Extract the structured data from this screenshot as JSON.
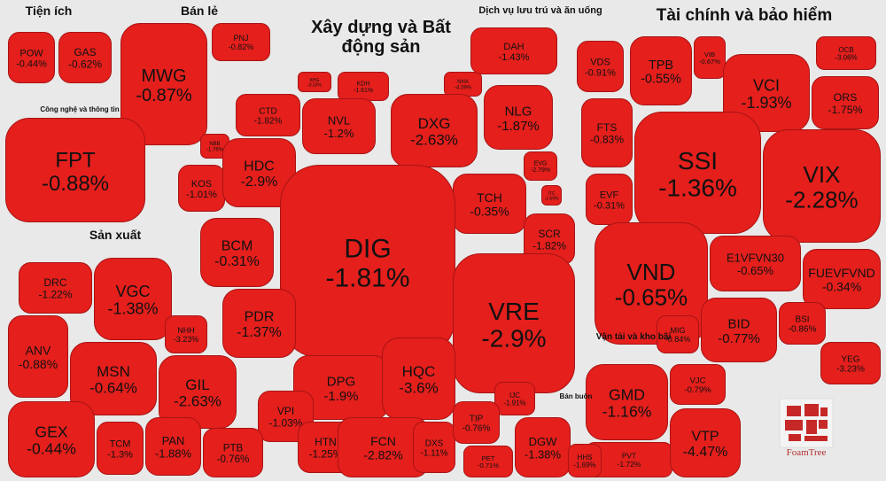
{
  "chart_data": {
    "type": "treemap",
    "color": "#e41f1c",
    "groups": [
      {
        "name": "Tiện ích",
        "categories": [
          "POW",
          "GAS"
        ],
        "values": [
          -0.44,
          -0.62
        ],
        "value_labels": [
          "-0.44%",
          "-0.62%"
        ]
      },
      {
        "name": "Bán lẻ",
        "categories": [
          "MWG",
          "PNJ"
        ],
        "values": [
          -0.87,
          -0.82
        ],
        "value_labels": [
          "-0.87%",
          "-0.82%"
        ]
      },
      {
        "name": "Công nghệ và thông tin",
        "categories": [
          "FPT"
        ],
        "values": [
          -0.88
        ],
        "value_labels": [
          "-0.88%"
        ]
      },
      {
        "name": "Xây dựng và Bất động sản",
        "categories": [
          "KHG",
          "KDH",
          "NHA",
          "CTD",
          "NVL",
          "DXG",
          "NLG",
          "NBB",
          "KOS",
          "HDC",
          "EVG",
          "ITC",
          "TCH",
          "SCR",
          "BCM",
          "DIG",
          "VRE",
          "PDR",
          "DPG",
          "HQC",
          "VPI",
          "HTN",
          "FCN",
          "DXS"
        ],
        "values": [
          -0.33,
          -1.61,
          -4.39,
          -1.82,
          -1.2,
          -2.63,
          -1.87,
          -1.76,
          -1.01,
          -2.9,
          -2.79,
          -1.69,
          -0.35,
          -1.82,
          -0.31,
          -1.81,
          -2.9,
          -1.37,
          -1.9,
          -3.6,
          -1.03,
          -1.25,
          -2.82,
          -1.11
        ],
        "value_labels": [
          "-0.33%",
          "-1.61%",
          "-4.39%",
          "-1.82%",
          "-1.2%",
          "-2.63%",
          "-1.87%",
          "-1.76%",
          "-1.01%",
          "-2.9%",
          "-2.79%",
          "-1.69%",
          "-0.35%",
          "-1.82%",
          "-0.31%",
          "-1.81%",
          "-2.9%",
          "-1.37%",
          "-1.9%",
          "-3.6%",
          "-1.03%",
          "-1.25%",
          "-2.82%",
          "-1.11%"
        ]
      },
      {
        "name": "Dịch vụ lưu trú và ăn uống",
        "categories": [
          "DAH"
        ],
        "values": [
          -1.43
        ],
        "value_labels": [
          "-1.43%"
        ]
      },
      {
        "name": "Tài chính và bảo hiểm",
        "categories": [
          "VDS",
          "TPB",
          "VIB",
          "OCB",
          "VCI",
          "ORS",
          "FTS",
          "SSI",
          "VIX",
          "EVF",
          "VND",
          "E1VFVN30",
          "FUEVFVND",
          "MIG",
          "BID",
          "BSI",
          "YEG"
        ],
        "values": [
          -0.91,
          -0.55,
          -0.67,
          -3.06,
          -1.93,
          -1.75,
          -0.83,
          -1.36,
          -2.28,
          -0.31,
          -0.65,
          -0.65,
          -0.34,
          -0.84,
          -0.77,
          -0.86,
          -3.23
        ],
        "value_labels": [
          "-0.91%",
          "-0.55%",
          "-0.67%",
          "-3.06%",
          "-1.93%",
          "-1.75%",
          "-0.83%",
          "-1.36%",
          "-2.28%",
          "-0.31%",
          "-0.65%",
          "-0.65%",
          "-0.34%",
          "-0.84%",
          "-0.77%",
          "-0.86%",
          "-3.23%"
        ]
      },
      {
        "name": "Sản xuất",
        "categories": [
          "DRC",
          "VGC",
          "NHH",
          "ANV",
          "MSN",
          "GIL",
          "GEX",
          "TCM",
          "PAN",
          "PTB"
        ],
        "values": [
          -1.22,
          -1.38,
          -3.23,
          -0.88,
          -0.64,
          -2.63,
          -0.44,
          -1.3,
          -1.88,
          -0.76
        ],
        "value_labels": [
          "-1.22%",
          "-1.38%",
          "-3.23%",
          "-0.88%",
          "-0.64%",
          "-2.63%",
          "-0.44%",
          "-1.3%",
          "-1.88%",
          "-0.76%"
        ]
      },
      {
        "name": "Vận tải và kho bãi",
        "categories": [
          "GMD",
          "VJC",
          "PVT",
          "VTP"
        ],
        "values": [
          -1.16,
          -0.79,
          -1.72,
          -4.47
        ],
        "value_labels": [
          "-1.16%",
          "-0.79%",
          "-1.72%",
          "-4.47%"
        ]
      },
      {
        "name": "Bán buôn",
        "categories": [
          "IJC",
          "TIP",
          "PET",
          "DGW",
          "HHS"
        ],
        "values": [
          -1.91,
          -0.76,
          -0.71,
          -1.38,
          -1.69
        ],
        "value_labels": [
          "-1.91%",
          "-0.76%",
          "-0.71%",
          "-1.38%",
          "-1.69%"
        ]
      }
    ]
  }
}
